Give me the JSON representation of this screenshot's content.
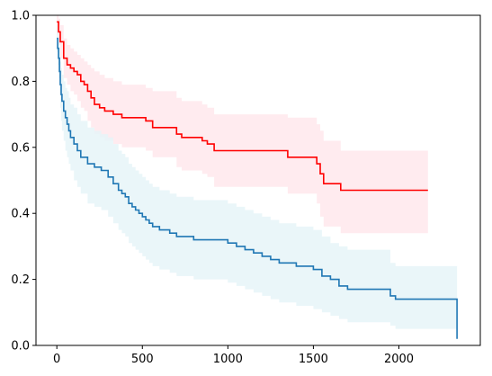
{
  "chart_data": {
    "type": "line",
    "title": "",
    "xlabel": "",
    "ylabel": "",
    "xlim": [
      -122,
      2476
    ],
    "ylim": [
      0,
      1
    ],
    "x_ticks": [
      0,
      500,
      1000,
      1500,
      2000
    ],
    "y_ticks": [
      0.0,
      0.2,
      0.4,
      0.6,
      0.8,
      1.0
    ],
    "x_tick_labels": [
      "0",
      "500",
      "1000",
      "1500",
      "2000"
    ],
    "y_tick_labels": [
      "0.0",
      "0.2",
      "0.4",
      "0.6",
      "0.8",
      "1.0"
    ],
    "grid": false,
    "series": [
      {
        "color": "#ff0000",
        "band_color": "#ffe8ec",
        "x": [
          0,
          10,
          20,
          40,
          60,
          80,
          100,
          120,
          140,
          160,
          180,
          200,
          220,
          250,
          280,
          330,
          380,
          520,
          560,
          700,
          730,
          850,
          880,
          920,
          1350,
          1520,
          1540,
          1560,
          1660,
          2170
        ],
        "y": [
          0.98,
          0.95,
          0.92,
          0.87,
          0.85,
          0.84,
          0.83,
          0.82,
          0.8,
          0.79,
          0.77,
          0.75,
          0.73,
          0.72,
          0.71,
          0.7,
          0.69,
          0.68,
          0.66,
          0.64,
          0.63,
          0.62,
          0.61,
          0.59,
          0.57,
          0.55,
          0.52,
          0.49,
          0.47,
          0.47
        ],
        "lower": [
          0.94,
          0.91,
          0.87,
          0.81,
          0.79,
          0.77,
          0.76,
          0.74,
          0.72,
          0.71,
          0.68,
          0.66,
          0.64,
          0.63,
          0.62,
          0.61,
          0.6,
          0.59,
          0.57,
          0.54,
          0.53,
          0.52,
          0.51,
          0.48,
          0.46,
          0.43,
          0.39,
          0.36,
          0.34,
          0.34
        ],
        "upper": [
          1.0,
          0.99,
          0.97,
          0.93,
          0.91,
          0.9,
          0.89,
          0.88,
          0.87,
          0.86,
          0.85,
          0.84,
          0.83,
          0.82,
          0.81,
          0.8,
          0.79,
          0.78,
          0.77,
          0.75,
          0.74,
          0.73,
          0.72,
          0.7,
          0.69,
          0.67,
          0.65,
          0.62,
          0.59,
          0.59
        ]
      },
      {
        "color": "#1f77b4",
        "band_color": "#e6f4f8",
        "x": [
          0,
          5,
          10,
          15,
          20,
          25,
          30,
          40,
          50,
          60,
          70,
          80,
          100,
          120,
          140,
          180,
          220,
          260,
          300,
          330,
          360,
          380,
          400,
          420,
          440,
          460,
          480,
          500,
          520,
          540,
          560,
          600,
          660,
          700,
          760,
          800,
          1000,
          1050,
          1100,
          1150,
          1200,
          1250,
          1300,
          1400,
          1500,
          1550,
          1600,
          1650,
          1700,
          1950,
          1980,
          2100,
          2340
        ],
        "y": [
          0.93,
          0.9,
          0.87,
          0.83,
          0.79,
          0.76,
          0.74,
          0.71,
          0.69,
          0.67,
          0.65,
          0.63,
          0.61,
          0.59,
          0.57,
          0.55,
          0.54,
          0.53,
          0.51,
          0.49,
          0.47,
          0.46,
          0.45,
          0.43,
          0.42,
          0.41,
          0.4,
          0.39,
          0.38,
          0.37,
          0.36,
          0.35,
          0.34,
          0.33,
          0.33,
          0.32,
          0.31,
          0.3,
          0.29,
          0.28,
          0.27,
          0.26,
          0.25,
          0.24,
          0.23,
          0.21,
          0.2,
          0.18,
          0.17,
          0.15,
          0.14,
          0.14,
          0.02
        ],
        "lower": [
          0.89,
          0.85,
          0.81,
          0.76,
          0.72,
          0.68,
          0.65,
          0.62,
          0.59,
          0.57,
          0.55,
          0.53,
          0.5,
          0.48,
          0.46,
          0.43,
          0.42,
          0.41,
          0.39,
          0.37,
          0.35,
          0.34,
          0.33,
          0.31,
          0.3,
          0.29,
          0.28,
          0.27,
          0.26,
          0.25,
          0.24,
          0.23,
          0.22,
          0.21,
          0.21,
          0.2,
          0.19,
          0.18,
          0.17,
          0.16,
          0.15,
          0.14,
          0.13,
          0.12,
          0.11,
          0.1,
          0.09,
          0.08,
          0.07,
          0.06,
          0.05,
          0.05,
          0.02
        ],
        "upper": [
          0.97,
          0.95,
          0.93,
          0.9,
          0.86,
          0.84,
          0.82,
          0.8,
          0.78,
          0.77,
          0.75,
          0.73,
          0.72,
          0.7,
          0.68,
          0.66,
          0.65,
          0.64,
          0.63,
          0.61,
          0.59,
          0.58,
          0.57,
          0.55,
          0.54,
          0.53,
          0.52,
          0.51,
          0.5,
          0.49,
          0.48,
          0.47,
          0.46,
          0.45,
          0.45,
          0.44,
          0.43,
          0.42,
          0.41,
          0.4,
          0.39,
          0.38,
          0.37,
          0.36,
          0.35,
          0.33,
          0.31,
          0.3,
          0.29,
          0.25,
          0.24,
          0.24,
          0.23
        ]
      }
    ]
  }
}
